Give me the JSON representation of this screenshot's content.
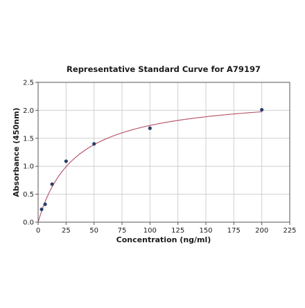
{
  "chart_data": {
    "type": "scatter",
    "title": "Representative Standard Curve for A79197",
    "xlabel": "Concentration (ng/ml)",
    "ylabel": "Absorbance (450nm)",
    "xlim": [
      0,
      225
    ],
    "ylim": [
      0,
      2.5
    ],
    "x_ticks": [
      0,
      25,
      50,
      75,
      100,
      125,
      150,
      175,
      200,
      225
    ],
    "y_ticks": [
      0.0,
      0.5,
      1.0,
      1.5,
      2.0,
      2.5
    ],
    "x_tick_labels": [
      "0",
      "25",
      "50",
      "75",
      "100",
      "125",
      "150",
      "175",
      "200",
      "225"
    ],
    "y_tick_labels": [
      "0.0",
      "0.5",
      "1.0",
      "1.5",
      "2.0",
      "2.5"
    ],
    "grid": true,
    "points": [
      {
        "x": 3.125,
        "y": 0.23
      },
      {
        "x": 6.25,
        "y": 0.32
      },
      {
        "x": 12.5,
        "y": 0.68
      },
      {
        "x": 25,
        "y": 1.09
      },
      {
        "x": 50,
        "y": 1.4
      },
      {
        "x": 100,
        "y": 1.68
      },
      {
        "x": 200,
        "y": 2.01
      }
    ],
    "fit_curve": {
      "type": "hyperbolic",
      "vmax": 2.3,
      "km": 33,
      "x_start": 0,
      "x_end": 200
    },
    "colors": {
      "points": "#2b3f6b",
      "curve": "#b85a6e",
      "grid": "#cfcfcf",
      "frame": "#555555"
    }
  }
}
